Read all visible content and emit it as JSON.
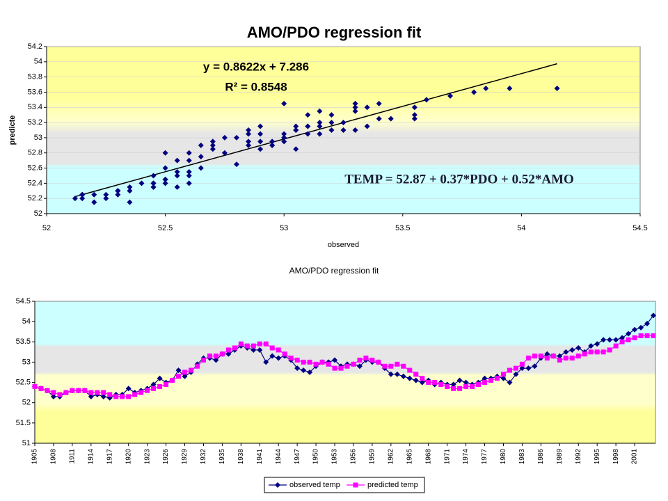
{
  "chart_data": [
    {
      "type": "scatter",
      "title": "AMO/PDO regression fit",
      "x_label": "observed",
      "y_label": "predicte",
      "annotations": [
        "y = 0.8622x + 7.286",
        "R² = 0.8548",
        "TEMP = 52.87 + 0.37*PDO + 0.52*AMO"
      ],
      "x": [
        52.4,
        52.35,
        52.3,
        52.15,
        52.15,
        52.25,
        52.3,
        52.3,
        52.3,
        52.15,
        52.2,
        52.15,
        52.12,
        52.2,
        52.2,
        52.35,
        52.25,
        52.3,
        52.35,
        52.45,
        52.6,
        52.5,
        52.55,
        52.8,
        52.65,
        52.75,
        52.95,
        53.1,
        53.1,
        53.05,
        53.2,
        53.2,
        53.3,
        53.4,
        53.35,
        53.3,
        53.3,
        53.0,
        53.15,
        53.1,
        53.15,
        53.05,
        52.85,
        52.8,
        52.75,
        52.9,
        53.0,
        53.0,
        53.05,
        52.9,
        52.95,
        52.95,
        52.9,
        53.05,
        53.0,
        53.0,
        52.85,
        52.7,
        52.7,
        52.65,
        52.6,
        52.55,
        52.5,
        52.55,
        52.45,
        52.5,
        52.45,
        52.45,
        52.55,
        52.5,
        52.45,
        52.5,
        52.6,
        52.6,
        52.65,
        52.6,
        52.5,
        52.7,
        52.85,
        52.85,
        52.9,
        53.1,
        53.2,
        53.15,
        53.15,
        53.25,
        53.3,
        53.35,
        53.25,
        53.4,
        53.45,
        53.55,
        53.55,
        53.55,
        53.6,
        53.7,
        53.8,
        53.85,
        53.95,
        54.15
      ],
      "values": [
        52.4,
        52.35,
        52.3,
        52.25,
        52.2,
        52.25,
        52.3,
        52.3,
        52.3,
        52.25,
        52.25,
        52.25,
        52.2,
        52.15,
        52.15,
        52.15,
        52.2,
        52.25,
        52.3,
        52.35,
        52.4,
        52.45,
        52.55,
        52.65,
        52.75,
        52.8,
        52.9,
        53.05,
        53.15,
        53.15,
        53.2,
        53.3,
        53.35,
        53.45,
        53.4,
        53.4,
        53.45,
        53.45,
        53.35,
        53.3,
        53.2,
        53.1,
        53.05,
        53.0,
        53.0,
        52.95,
        53.0,
        52.95,
        52.85,
        52.85,
        52.9,
        52.95,
        53.05,
        53.1,
        53.05,
        53.0,
        52.9,
        52.9,
        52.95,
        52.9,
        52.8,
        52.7,
        52.6,
        52.5,
        52.5,
        52.45,
        52.4,
        52.35,
        52.35,
        52.4,
        52.4,
        52.45,
        52.5,
        52.55,
        52.6,
        52.7,
        52.8,
        52.85,
        52.95,
        53.1,
        53.15,
        53.15,
        53.1,
        53.15,
        53.05,
        53.1,
        53.1,
        53.15,
        53.2,
        53.25,
        53.25,
        53.25,
        53.3,
        53.4,
        53.5,
        53.55,
        53.6,
        53.65,
        53.65,
        53.65
      ],
      "color": "#000080",
      "marker": "diamond",
      "trendline": {
        "x": [
          52.12,
          54.15
        ],
        "values": [
          52.224,
          53.974
        ],
        "color": "#000000"
      },
      "xlim": [
        52,
        54.5
      ],
      "xticks": [
        52,
        52.5,
        53,
        53.5,
        54,
        54.5
      ],
      "ylim": [
        52,
        54.2
      ],
      "yticks": [
        52,
        52.2,
        52.4,
        52.6,
        52.8,
        53,
        53.2,
        53.4,
        53.6,
        53.8,
        54,
        54.2
      ],
      "grid": true
    },
    {
      "type": "line",
      "title": "AMO/PDO regression fit",
      "categories": [
        "1905",
        null,
        null,
        "1908",
        null,
        null,
        "1911",
        null,
        null,
        "1914",
        null,
        null,
        "1917",
        null,
        null,
        "1920",
        null,
        null,
        "1923",
        null,
        null,
        "1926",
        null,
        null,
        "1929",
        null,
        null,
        "1932",
        null,
        null,
        "1935",
        null,
        null,
        "1938",
        null,
        null,
        "1941",
        null,
        null,
        "1944",
        null,
        null,
        "1947",
        null,
        null,
        "1950",
        null,
        null,
        "1953",
        null,
        null,
        "1956",
        null,
        null,
        "1959",
        null,
        null,
        "1962",
        null,
        null,
        "1965",
        null,
        null,
        "1968",
        null,
        null,
        "1971",
        null,
        null,
        "1974",
        null,
        null,
        "1977",
        null,
        null,
        "1980",
        null,
        null,
        "1983",
        null,
        null,
        "1986",
        null,
        null,
        "1989",
        null,
        null,
        "1992",
        null,
        null,
        "1995",
        null,
        null,
        "1998",
        null,
        null,
        "2001",
        null,
        null,
        null
      ],
      "series": [
        {
          "name": "observed temp",
          "color": "#000080",
          "marker": "diamond",
          "values": [
            52.4,
            52.35,
            52.3,
            52.15,
            52.15,
            52.25,
            52.3,
            52.3,
            52.3,
            52.15,
            52.2,
            52.15,
            52.12,
            52.2,
            52.2,
            52.35,
            52.25,
            52.3,
            52.35,
            52.45,
            52.6,
            52.5,
            52.55,
            52.8,
            52.65,
            52.75,
            52.95,
            53.1,
            53.1,
            53.05,
            53.2,
            53.2,
            53.3,
            53.4,
            53.35,
            53.3,
            53.3,
            53.0,
            53.15,
            53.1,
            53.15,
            53.05,
            52.85,
            52.8,
            52.75,
            52.9,
            53.0,
            53.0,
            53.05,
            52.9,
            52.95,
            52.95,
            52.9,
            53.05,
            53.0,
            53.0,
            52.85,
            52.7,
            52.7,
            52.65,
            52.6,
            52.55,
            52.5,
            52.55,
            52.45,
            52.5,
            52.45,
            52.45,
            52.55,
            52.5,
            52.45,
            52.5,
            52.6,
            52.6,
            52.65,
            52.6,
            52.5,
            52.7,
            52.85,
            52.85,
            52.9,
            53.1,
            53.2,
            53.15,
            53.15,
            53.25,
            53.3,
            53.35,
            53.25,
            53.4,
            53.45,
            53.55,
            53.55,
            53.55,
            53.6,
            53.7,
            53.8,
            53.85,
            53.95,
            54.15
          ]
        },
        {
          "name": "predicted temp",
          "color": "#ff00ff",
          "marker": "square",
          "values": [
            52.4,
            52.35,
            52.3,
            52.25,
            52.2,
            52.25,
            52.3,
            52.3,
            52.3,
            52.25,
            52.25,
            52.25,
            52.2,
            52.15,
            52.15,
            52.15,
            52.2,
            52.25,
            52.3,
            52.35,
            52.4,
            52.45,
            52.55,
            52.65,
            52.75,
            52.8,
            52.9,
            53.05,
            53.15,
            53.15,
            53.2,
            53.3,
            53.35,
            53.45,
            53.4,
            53.4,
            53.45,
            53.45,
            53.35,
            53.3,
            53.2,
            53.1,
            53.05,
            53.0,
            53.0,
            52.95,
            53.0,
            52.95,
            52.85,
            52.85,
            52.9,
            52.95,
            53.05,
            53.1,
            53.05,
            53.0,
            52.9,
            52.9,
            52.95,
            52.9,
            52.8,
            52.7,
            52.6,
            52.5,
            52.5,
            52.45,
            52.4,
            52.35,
            52.35,
            52.4,
            52.4,
            52.45,
            52.5,
            52.55,
            52.6,
            52.7,
            52.8,
            52.85,
            52.95,
            53.1,
            53.15,
            53.15,
            53.1,
            53.15,
            53.05,
            53.1,
            53.1,
            53.15,
            53.2,
            53.25,
            53.25,
            53.25,
            53.3,
            53.4,
            53.5,
            53.55,
            53.6,
            53.65,
            53.65,
            53.65
          ]
        }
      ],
      "ylim": [
        51,
        54.5
      ],
      "yticks": [
        51,
        51.5,
        52,
        52.5,
        53,
        53.5,
        54,
        54.5
      ],
      "grid": false,
      "legend": "bottom"
    }
  ]
}
